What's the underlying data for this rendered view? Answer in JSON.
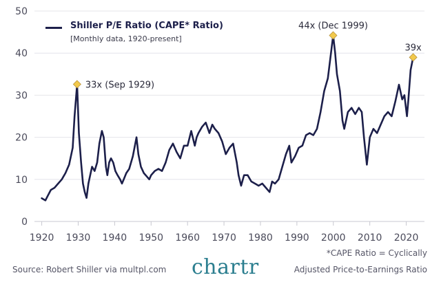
{
  "chart_data": {
    "type": "line",
    "title": "Shiller P/E Ratio (CAPE* Ratio)",
    "subtitle": "[Monthly data, 1920-present]",
    "xlabel": "",
    "ylabel": "",
    "xlim": [
      1918,
      2025
    ],
    "ylim": [
      0,
      50
    ],
    "x_ticks": [
      1920,
      1930,
      1940,
      1950,
      1960,
      1970,
      1980,
      1990,
      2000,
      2010,
      2020
    ],
    "y_ticks": [
      0,
      10,
      20,
      30,
      40,
      50
    ],
    "grid": true,
    "line_color": "#1c1f4a",
    "marker_color": "#f2c94c",
    "series": [
      {
        "name": "Shiller P/E Ratio (CAPE* Ratio)",
        "x": [
          1920.0,
          1921.0,
          1921.6,
          1922.5,
          1923.5,
          1924.5,
          1925.5,
          1926.5,
          1927.5,
          1928.5,
          1929.0,
          1929.7,
          1930.2,
          1930.8,
          1931.3,
          1931.8,
          1932.3,
          1932.8,
          1933.3,
          1933.8,
          1934.5,
          1935.2,
          1935.8,
          1936.5,
          1937.0,
          1937.6,
          1938.0,
          1938.5,
          1939.0,
          1939.6,
          1940.2,
          1940.8,
          1941.5,
          1942.0,
          1942.5,
          1943.2,
          1944.0,
          1945.0,
          1946.0,
          1946.5,
          1947.2,
          1948.0,
          1949.0,
          1949.5,
          1950.0,
          1951.0,
          1952.0,
          1953.0,
          1954.0,
          1955.0,
          1956.0,
          1957.0,
          1958.0,
          1959.0,
          1960.0,
          1961.0,
          1962.0,
          1962.5,
          1963.0,
          1964.0,
          1965.0,
          1966.0,
          1966.8,
          1967.5,
          1968.5,
          1969.5,
          1970.5,
          1971.5,
          1972.5,
          1973.5,
          1974.0,
          1974.7,
          1975.5,
          1976.5,
          1977.5,
          1978.5,
          1979.5,
          1980.5,
          1981.5,
          1982.5,
          1983.2,
          1984.0,
          1985.0,
          1986.0,
          1987.0,
          1987.9,
          1988.5,
          1989.5,
          1990.5,
          1991.5,
          1992.5,
          1993.5,
          1994.5,
          1995.5,
          1996.5,
          1997.5,
          1998.5,
          1999.95,
          2000.5,
          2001.0,
          2001.8,
          2002.5,
          2003.0,
          2004.0,
          2005.0,
          2006.0,
          2007.0,
          2007.8,
          2008.4,
          2009.2,
          2010.0,
          2011.0,
          2012.0,
          2013.0,
          2014.0,
          2015.0,
          2016.0,
          2017.0,
          2018.0,
          2018.9,
          2019.5,
          2020.2,
          2020.6,
          2021.2,
          2021.9
        ],
        "y": [
          5.5,
          5.0,
          6.0,
          7.5,
          8.0,
          9.0,
          10.0,
          11.5,
          13.5,
          17.5,
          25.0,
          32.6,
          21.0,
          14.0,
          9.0,
          7.0,
          5.6,
          9.0,
          11.0,
          13.0,
          12.0,
          14.0,
          18.5,
          21.5,
          20.0,
          13.0,
          11.0,
          14.0,
          15.0,
          14.0,
          12.0,
          11.0,
          10.0,
          9.0,
          10.0,
          11.5,
          12.5,
          15.5,
          20.0,
          16.0,
          13.0,
          11.5,
          10.5,
          10.0,
          11.0,
          12.0,
          12.5,
          12.0,
          14.0,
          17.0,
          18.5,
          16.5,
          15.0,
          18.0,
          18.0,
          21.5,
          18.0,
          20.0,
          21.0,
          22.5,
          23.5,
          21.0,
          23.0,
          22.0,
          21.0,
          19.0,
          16.0,
          17.5,
          18.5,
          14.0,
          11.0,
          8.5,
          11.0,
          11.0,
          9.5,
          9.0,
          8.5,
          9.0,
          8.0,
          7.0,
          9.5,
          9.0,
          10.0,
          13.0,
          16.0,
          18.0,
          14.0,
          15.5,
          17.5,
          18.0,
          20.5,
          21.0,
          20.5,
          22.0,
          26.0,
          31.0,
          34.0,
          44.2,
          40.0,
          35.0,
          31.0,
          24.0,
          22.0,
          26.0,
          27.0,
          25.5,
          27.0,
          26.0,
          20.0,
          13.5,
          20.0,
          22.0,
          21.0,
          23.0,
          25.0,
          26.0,
          25.0,
          28.5,
          32.5,
          29.0,
          30.0,
          25.0,
          29.0,
          36.0,
          39.0
        ]
      }
    ],
    "annotations": [
      {
        "x": 1929.7,
        "y": 32.6,
        "label": "33x (Sep 1929)",
        "position": "right"
      },
      {
        "x": 1999.95,
        "y": 44.2,
        "label": "44x (Dec 1999)",
        "position": "above"
      },
      {
        "x": 2021.9,
        "y": 39.0,
        "label": "39x",
        "position": "above"
      }
    ]
  },
  "legend": {
    "title": "Shiller P/E Ratio (CAPE* Ratio)",
    "subtitle": "[Monthly data, 1920-present]"
  },
  "footer": {
    "source": "Source: Robert Shiller via multpl.com",
    "brand": "chartr",
    "note_line1": "*CAPE Ratio = Cyclically",
    "note_line2": "Adjusted Price-to-Earnings Ratio"
  }
}
